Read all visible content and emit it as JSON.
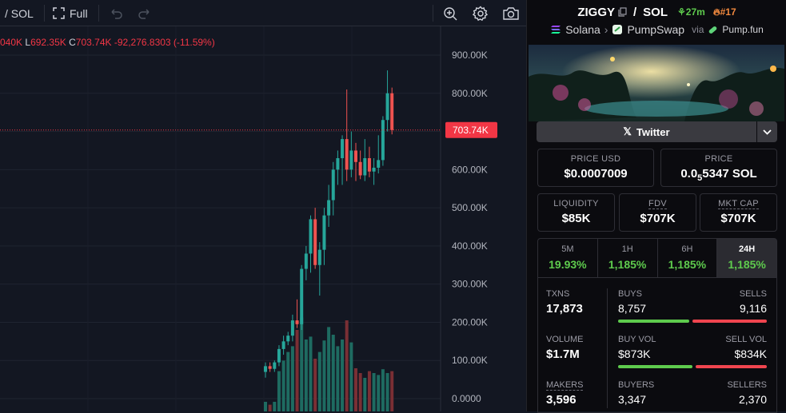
{
  "toolbar": {
    "symbol": "/ SOL",
    "fullscreen_label": "Full"
  },
  "legend": {
    "o_value": "040K",
    "l_key": "L",
    "l_value": "692.35K",
    "c_key": "C",
    "c_value": "703.74K",
    "change": "-92,276.8303 (-11.59%)"
  },
  "chart_data": {
    "type": "candlestick",
    "ylim": [
      0,
      900000
    ],
    "y_ticks": [
      "900.00K",
      "800.00K",
      "700.00K",
      "600.00K",
      "500.00K",
      "400.00K",
      "300.00K",
      "200.00K",
      "100.00K",
      "0.0000"
    ],
    "y_tick_values": [
      900000,
      800000,
      700000,
      600000,
      500000,
      400000,
      300000,
      200000,
      100000,
      0
    ],
    "last_price_label": "703.74K",
    "last_price": 703740,
    "candles": [
      {
        "o": 70000,
        "h": 95000,
        "l": 55000,
        "c": 85000
      },
      {
        "o": 85000,
        "h": 95000,
        "l": 70000,
        "c": 78000
      },
      {
        "o": 78000,
        "h": 100000,
        "l": 70000,
        "c": 95000
      },
      {
        "o": 95000,
        "h": 140000,
        "l": 85000,
        "c": 130000
      },
      {
        "o": 130000,
        "h": 165000,
        "l": 115000,
        "c": 150000
      },
      {
        "o": 150000,
        "h": 175000,
        "l": 140000,
        "c": 165000
      },
      {
        "o": 165000,
        "h": 220000,
        "l": 150000,
        "c": 205000
      },
      {
        "o": 205000,
        "h": 260000,
        "l": 185000,
        "c": 195000
      },
      {
        "o": 195000,
        "h": 350000,
        "l": 180000,
        "c": 340000
      },
      {
        "o": 340000,
        "h": 400000,
        "l": 310000,
        "c": 380000
      },
      {
        "o": 380000,
        "h": 480000,
        "l": 330000,
        "c": 470000
      },
      {
        "o": 470000,
        "h": 500000,
        "l": 340000,
        "c": 350000
      },
      {
        "o": 350000,
        "h": 410000,
        "l": 270000,
        "c": 390000
      },
      {
        "o": 390000,
        "h": 500000,
        "l": 350000,
        "c": 480000
      },
      {
        "o": 480000,
        "h": 560000,
        "l": 450000,
        "c": 520000
      },
      {
        "o": 520000,
        "h": 620000,
        "l": 480000,
        "c": 600000
      },
      {
        "o": 600000,
        "h": 650000,
        "l": 560000,
        "c": 630000
      },
      {
        "o": 630000,
        "h": 690000,
        "l": 560000,
        "c": 680000
      },
      {
        "o": 680000,
        "h": 810000,
        "l": 570000,
        "c": 600000
      },
      {
        "o": 600000,
        "h": 700000,
        "l": 580000,
        "c": 650000
      },
      {
        "o": 650000,
        "h": 670000,
        "l": 570000,
        "c": 620000
      },
      {
        "o": 620000,
        "h": 650000,
        "l": 575000,
        "c": 585000
      },
      {
        "o": 585000,
        "h": 680000,
        "l": 570000,
        "c": 630000
      },
      {
        "o": 630000,
        "h": 660000,
        "l": 580000,
        "c": 595000
      },
      {
        "o": 595000,
        "h": 630000,
        "l": 560000,
        "c": 605000
      },
      {
        "o": 605000,
        "h": 690000,
        "l": 590000,
        "c": 625000
      },
      {
        "o": 625000,
        "h": 740000,
        "l": 610000,
        "c": 730000
      },
      {
        "o": 730000,
        "h": 860000,
        "l": 700000,
        "c": 800000
      },
      {
        "o": 800000,
        "h": 815000,
        "l": 692350,
        "c": 703740
      }
    ],
    "volumes": [
      0.1,
      0.07,
      0.1,
      0.42,
      0.53,
      0.62,
      0.68,
      0.85,
      0.98,
      0.75,
      0.78,
      0.55,
      0.62,
      0.74,
      0.88,
      0.8,
      0.68,
      0.75,
      0.95,
      0.72,
      0.45,
      0.4,
      0.35,
      0.42,
      0.4,
      0.38,
      0.44,
      0.4,
      0.42
    ],
    "up_color": "#26a69a",
    "down_color": "#ef5350"
  },
  "pair": {
    "base": "ZIGGY",
    "quote": "SOL",
    "age": "27m",
    "rank": "#17",
    "chain": "Solana",
    "dex": "PumpSwap",
    "via": "via",
    "launchpad": "Pump.fun"
  },
  "socials": {
    "twitter_label": "Twitter"
  },
  "prices": {
    "usd_label": "PRICE USD",
    "usd_value": "$0.0007009",
    "native_label": "PRICE",
    "native_prefix": "0.0",
    "native_sub": "5",
    "native_rest": "5347 SOL"
  },
  "metrics": [
    {
      "label": "LIQUIDITY",
      "value": "$85K"
    },
    {
      "label": "FDV",
      "value": "$707K"
    },
    {
      "label": "MKT CAP",
      "value": "$707K"
    }
  ],
  "timeframes": [
    {
      "label": "5M",
      "value": "19.93%"
    },
    {
      "label": "1H",
      "value": "1,185%"
    },
    {
      "label": "6H",
      "value": "1,185%"
    },
    {
      "label": "24H",
      "value": "1,185%"
    }
  ],
  "stats": {
    "txns_label": "TXNS",
    "txns": "17,873",
    "buys_label": "BUYS",
    "buys": "8,757",
    "sells_label": "SELLS",
    "sells": "9,116",
    "buys_ratio": 0.49,
    "volume_label": "VOLUME",
    "volume": "$1.7M",
    "buy_vol_label": "BUY VOL",
    "buy_vol": "$873K",
    "sell_vol_label": "SELL VOL",
    "sell_vol": "$834K",
    "buy_vol_ratio": 0.51,
    "makers_label": "MAKERS",
    "makers": "3,596",
    "buyers_label": "BUYERS",
    "buyers": "3,347",
    "sellers_label": "SELLERS",
    "sellers": "2,370"
  },
  "colors": {
    "green": "#5ecb4d",
    "red": "#f0454f",
    "orange": "#f0883e"
  }
}
